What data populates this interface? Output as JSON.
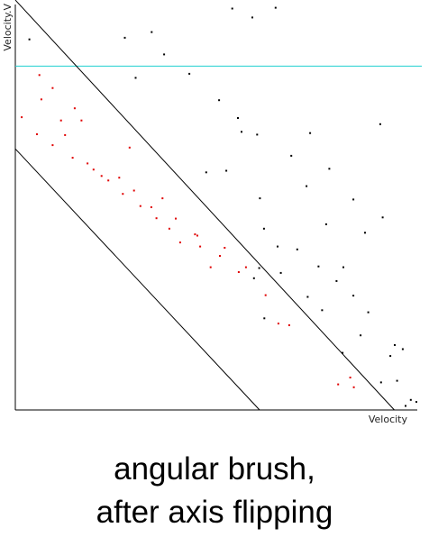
{
  "chart_data": {
    "type": "scatter",
    "title": "",
    "xlabel": "Velocity",
    "ylabel": "Velocity.V",
    "xlim": [
      0,
      100
    ],
    "ylim": [
      0,
      100
    ],
    "grid": false,
    "series": [
      {
        "color": "#000000",
        "role": "unselected",
        "points": [
          [
            3.5,
            91.4
          ],
          [
            27.3,
            91.8
          ],
          [
            54.1,
            99.0
          ],
          [
            64.9,
            99.2
          ],
          [
            59.1,
            96.8
          ],
          [
            34.0,
            93.2
          ],
          [
            37.1,
            87.7
          ],
          [
            43.4,
            82.9
          ],
          [
            50.8,
            76.4
          ],
          [
            60.3,
            67.9
          ],
          [
            72.6,
            55.2
          ],
          [
            87.2,
            43.7
          ],
          [
            91.2,
            6.8
          ],
          [
            93.5,
            13.3
          ],
          [
            94.6,
            16.0
          ],
          [
            97.3,
            1.0
          ],
          [
            95.2,
            7.2
          ],
          [
            98.6,
            2.5
          ],
          [
            100.0,
            2.0
          ],
          [
            72.9,
            27.9
          ],
          [
            62.1,
            22.6
          ],
          [
            80.1,
            31.8
          ],
          [
            84.3,
            28.2
          ],
          [
            91.6,
            47.5
          ],
          [
            84.3,
            51.9
          ],
          [
            61.0,
            52.2
          ],
          [
            78.3,
            59.5
          ],
          [
            68.8,
            62.7
          ],
          [
            55.5,
            72.0
          ],
          [
            47.6,
            58.6
          ],
          [
            62.0,
            44.7
          ],
          [
            70.3,
            39.6
          ],
          [
            77.5,
            45.8
          ],
          [
            88.0,
            24.1
          ],
          [
            59.5,
            32.5
          ],
          [
            30.0,
            81.9
          ],
          [
            56.4,
            68.6
          ],
          [
            65.4,
            40.3
          ],
          [
            75.6,
            35.4
          ],
          [
            52.6,
            59.0
          ],
          [
            81.6,
            14.1
          ],
          [
            86.1,
            18.4
          ],
          [
            76.5,
            24.6
          ],
          [
            66.2,
            33.8
          ],
          [
            91.0,
            70.5
          ],
          [
            96.6,
            15.0
          ],
          [
            81.8,
            35.2
          ],
          [
            60.8,
            35.0
          ],
          [
            73.5,
            68.3
          ]
        ]
      },
      {
        "color": "#e00000",
        "role": "selected",
        "points": [
          [
            1.6,
            72.2
          ],
          [
            6.5,
            76.6
          ],
          [
            14.8,
            74.4
          ],
          [
            5.4,
            68.0
          ],
          [
            9.3,
            65.3
          ],
          [
            14.3,
            62.2
          ],
          [
            19.5,
            59.3
          ],
          [
            23.2,
            56.6
          ],
          [
            26.8,
            53.3
          ],
          [
            31.2,
            50.3
          ],
          [
            35.2,
            47.3
          ],
          [
            38.4,
            44.7
          ],
          [
            41.1,
            41.3
          ],
          [
            46.1,
            40.3
          ],
          [
            51.0,
            38.0
          ],
          [
            55.7,
            34.0
          ],
          [
            62.4,
            28.3
          ],
          [
            65.6,
            21.3
          ],
          [
            68.3,
            20.9
          ],
          [
            80.5,
            6.3
          ],
          [
            84.4,
            5.6
          ],
          [
            83.5,
            8.0
          ],
          [
            6.0,
            82.6
          ],
          [
            9.3,
            79.4
          ],
          [
            11.4,
            71.4
          ],
          [
            16.5,
            71.4
          ],
          [
            21.5,
            57.7
          ],
          [
            29.6,
            54.1
          ],
          [
            33.9,
            50.0
          ],
          [
            40.0,
            47.2
          ],
          [
            44.8,
            43.3
          ],
          [
            48.7,
            35.2
          ],
          [
            28.5,
            64.7
          ],
          [
            36.7,
            52.2
          ],
          [
            45.4,
            43.0
          ],
          [
            52.2,
            40.0
          ],
          [
            57.5,
            35.2
          ],
          [
            25.9,
            57.3
          ],
          [
            12.4,
            67.8
          ],
          [
            18.0,
            60.8
          ]
        ]
      }
    ],
    "brush": {
      "type": "angular",
      "upper_line": [
        [
          0,
          101.1
        ],
        [
          94.5,
          0
        ]
      ],
      "lower_line": [
        [
          0,
          64.4
        ],
        [
          60.9,
          0
        ]
      ],
      "horizontal_line_y": 84.8,
      "horizontal_line_color": "#20d0d0"
    },
    "colors": {
      "axes": "#000000",
      "brush_lines": "#000000",
      "selected": "#e00000",
      "unselected": "#000000"
    }
  },
  "caption": {
    "line1": "angular brush,",
    "line2": "after axis flipping"
  }
}
